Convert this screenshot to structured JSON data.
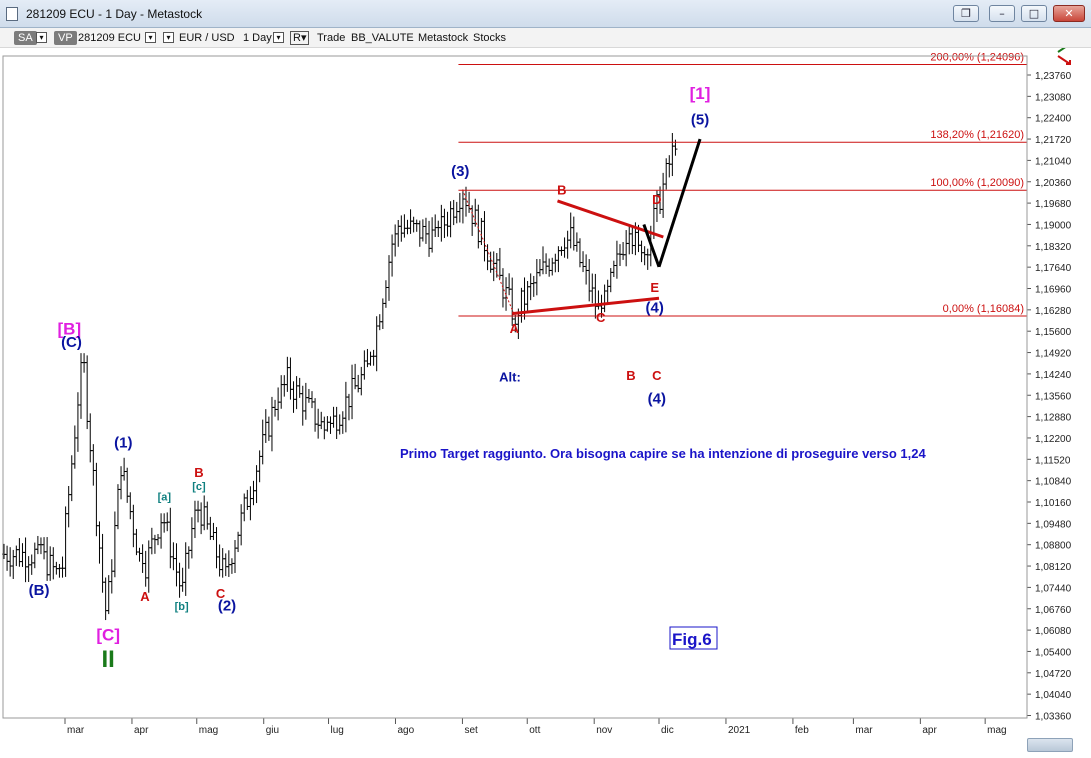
{
  "window": {
    "title": "281209 ECU - 1 Day - Metastock",
    "buttons": [
      "restore-icon",
      "minimize-icon",
      "maximize-icon",
      "close-icon"
    ]
  },
  "toolbar": {
    "sa": "SA",
    "vp": "VP",
    "symbol": "281209 ECU",
    "name": "EUR / USD",
    "period": "1 Day",
    "r": "R",
    "items": [
      "Trade",
      "BB_VALUTE",
      "Metastock",
      "Stocks"
    ]
  },
  "chart_data": {
    "type": "ohlc",
    "title": "",
    "yaxis_ticks": [
      "1,23760",
      "1,23080",
      "1,22400",
      "1,21720",
      "1,21040",
      "1,20360",
      "1,19680",
      "1,19000",
      "1,18320",
      "1,17640",
      "1,16960",
      "1,16280",
      "1,15600",
      "1,14920",
      "1,14240",
      "1,13560",
      "1,12880",
      "1,12200",
      "1,11520",
      "1,10840",
      "1,10160",
      "1,09480",
      "1,08800",
      "1,08120",
      "1,07440",
      "1,06760",
      "1,06080",
      "1,05400",
      "1,04720",
      "1,04040",
      "1,03360"
    ],
    "ylim": [
      1.031,
      1.244
    ],
    "xaxis_ticks": [
      "mar",
      "apr",
      "mag",
      "giu",
      "lug",
      "ago",
      "set",
      "ott",
      "nov",
      "dic",
      "2021",
      "feb",
      "mar",
      "apr",
      "mag"
    ],
    "series_keypoints": [
      {
        "date": "2020-02-18",
        "price": 1.085
      },
      {
        "date": "2020-02-28",
        "price": 1.0775
      },
      {
        "date": "2020-03-09",
        "price": 1.149
      },
      {
        "date": "2020-03-20",
        "price": 1.064
      },
      {
        "date": "2020-03-27",
        "price": 1.113
      },
      {
        "date": "2020-04-06",
        "price": 1.079
      },
      {
        "date": "2020-04-15",
        "price": 1.098
      },
      {
        "date": "2020-04-24",
        "price": 1.073
      },
      {
        "date": "2020-05-01",
        "price": 1.102
      },
      {
        "date": "2020-05-14",
        "price": 1.078
      },
      {
        "date": "2020-06-10",
        "price": 1.142
      },
      {
        "date": "2020-06-30",
        "price": 1.124
      },
      {
        "date": "2020-07-20",
        "price": 1.145
      },
      {
        "date": "2020-08-01",
        "price": 1.19
      },
      {
        "date": "2020-08-20",
        "price": 1.186
      },
      {
        "date": "2020-09-01",
        "price": 1.2011
      },
      {
        "date": "2020-09-25",
        "price": 1.1612
      },
      {
        "date": "2020-10-20",
        "price": 1.188
      },
      {
        "date": "2020-11-04",
        "price": 1.1603
      },
      {
        "date": "2020-11-17",
        "price": 1.19
      },
      {
        "date": "2020-11-23",
        "price": 1.178
      },
      {
        "date": "2020-12-09",
        "price": 1.217
      }
    ],
    "fibonacci": [
      {
        "label": "200,00% (1,24096)",
        "price": 1.24096
      },
      {
        "label": "138,20% (1,21620)",
        "price": 1.2162
      },
      {
        "label": "100,00% (1,20090)",
        "price": 1.2009
      },
      {
        "label": "0,00% (1,16084)",
        "price": 1.16084
      }
    ],
    "wave_labels": [
      {
        "text": "[B]",
        "color": "#e020e0"
      },
      {
        "text": "(C)",
        "color": "#0a14a0"
      },
      {
        "text": "(B)",
        "color": "#0a14a0"
      },
      {
        "text": "[C]",
        "color": "#e020e0"
      },
      {
        "text": "II",
        "color": "#1a7a1a"
      },
      {
        "text": "(1)",
        "color": "#0a14a0"
      },
      {
        "text": "A",
        "color": "#cc1010"
      },
      {
        "text": "[a]",
        "color": "#108080"
      },
      {
        "text": "[b]",
        "color": "#108080"
      },
      {
        "text": "[c]",
        "color": "#108080"
      },
      {
        "text": "B",
        "color": "#cc1010"
      },
      {
        "text": "C",
        "color": "#cc1010"
      },
      {
        "text": "(2)",
        "color": "#0a14a0"
      },
      {
        "text": "(3)",
        "color": "#0a14a0"
      },
      {
        "text": "A",
        "color": "#cc1010"
      },
      {
        "text": "B",
        "color": "#cc1010"
      },
      {
        "text": "C",
        "color": "#cc1010"
      },
      {
        "text": "D",
        "color": "#cc1010"
      },
      {
        "text": "E",
        "color": "#cc1010"
      },
      {
        "text": "(4)",
        "color": "#0a14a0"
      },
      {
        "text": "(5)",
        "color": "#0a14a0"
      },
      {
        "text": "[1]",
        "color": "#e020e0"
      },
      {
        "text": "Alt:",
        "color": "#0a14a0"
      },
      {
        "text": "B",
        "color": "#cc1010"
      },
      {
        "text": "C",
        "color": "#cc1010"
      },
      {
        "text": "(4)",
        "color": "#0a14a0"
      }
    ],
    "annotation": "Primo Target raggiunto. Ora bisogna capire se ha intenzione di proseguire verso 1,24",
    "figure_label": "Fig.6",
    "colors": {
      "bars": "#000000",
      "fib": "#cc1010",
      "text": "#0a14a0",
      "projection": "#000000"
    }
  }
}
